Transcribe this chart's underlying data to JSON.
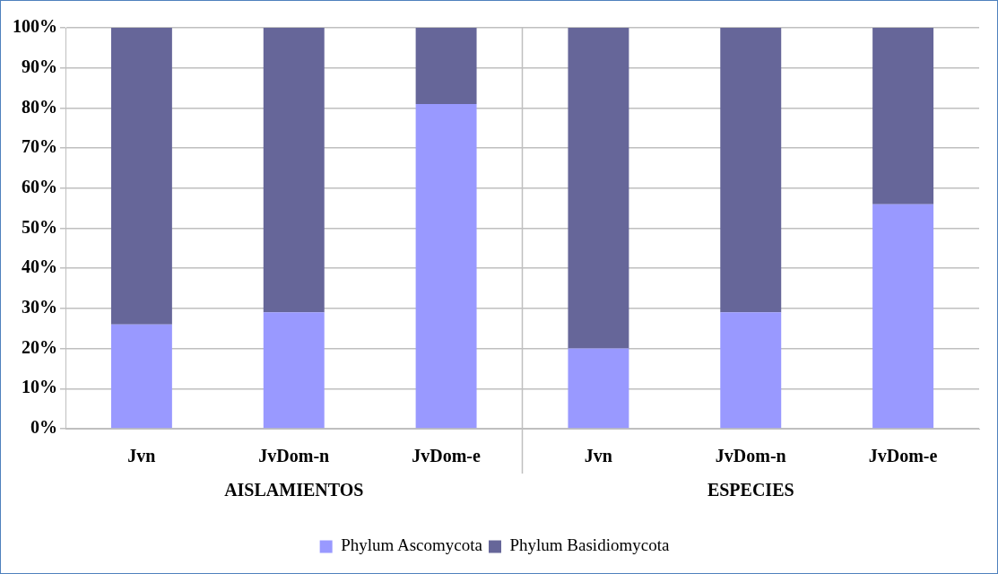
{
  "chart_data": {
    "type": "bar",
    "stacked": true,
    "categories": [
      "Jvn",
      "JvDom-n",
      "JvDom-e",
      "Jvn",
      "JvDom-n",
      "JvDom-e"
    ],
    "series": [
      {
        "name": "Phylum Ascomycota",
        "color": "#9999ff",
        "values": [
          26,
          29,
          81,
          20,
          29,
          56
        ]
      },
      {
        "name": "Phylum Basidiomycota",
        "color": "#666699",
        "values": [
          74,
          71,
          19,
          80,
          71,
          44
        ]
      }
    ],
    "ylim": [
      0,
      100
    ],
    "yticks": [
      {
        "value": 0,
        "label": "0%"
      },
      {
        "value": 10,
        "label": "10%"
      },
      {
        "value": 20,
        "label": "20%"
      },
      {
        "value": 30,
        "label": "30%"
      },
      {
        "value": 40,
        "label": "40%"
      },
      {
        "value": 50,
        "label": "50%"
      },
      {
        "value": 60,
        "label": "60%"
      },
      {
        "value": 70,
        "label": "70%"
      },
      {
        "value": 80,
        "label": "80%"
      },
      {
        "value": 90,
        "label": "90%"
      },
      {
        "value": 100,
        "label": "100%"
      }
    ],
    "annotations": [
      "AISLAMIENTOS",
      "ESPECIES"
    ],
    "grid": "y",
    "legend": "bottom"
  }
}
